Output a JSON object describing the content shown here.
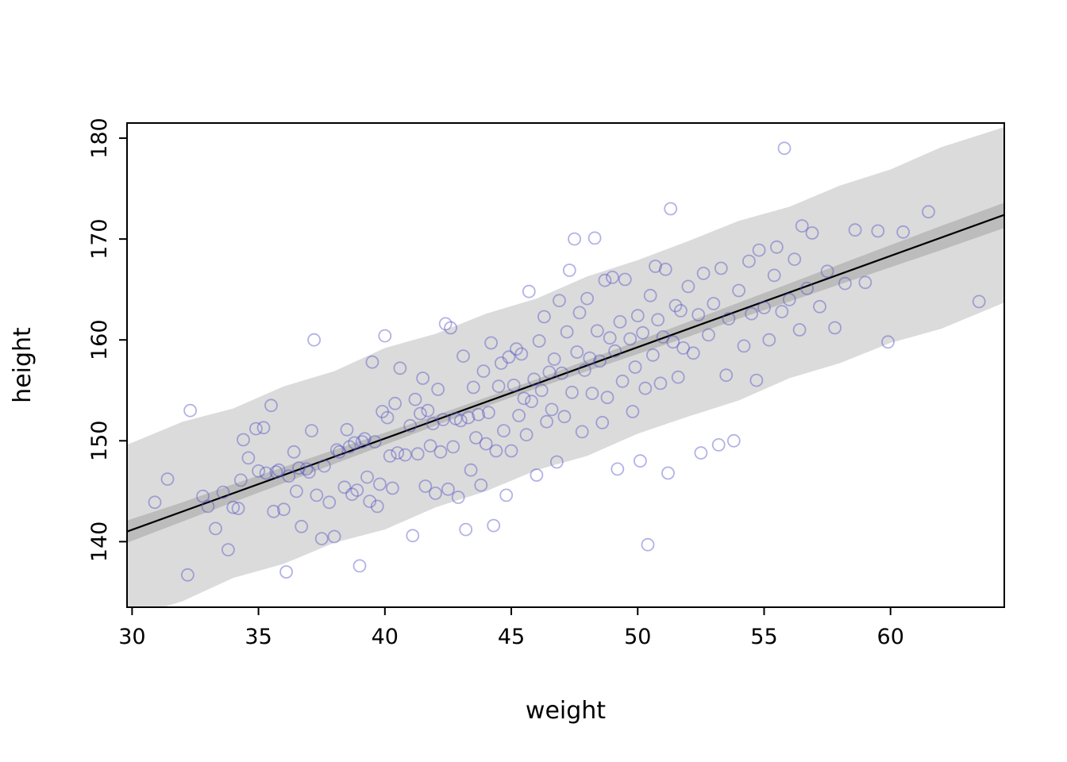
{
  "chart_data": {
    "type": "scatter",
    "title": "",
    "xlabel": "weight",
    "ylabel": "height",
    "xlim": [
      29.8,
      64.5
    ],
    "ylim": [
      133.5,
      181.5
    ],
    "xticks": [
      30,
      35,
      40,
      45,
      50,
      55,
      60
    ],
    "yticks": [
      140,
      150,
      160,
      170,
      180
    ],
    "grid": false,
    "legend": "none",
    "point_color": "#5555c8",
    "point_opacity": 0.45,
    "band_color": "rgba(0,0,0,0.14)",
    "line_color": "#000000",
    "regression_line": {
      "x": [
        29.8,
        64.5
      ],
      "y": [
        141.0,
        172.4
      ]
    },
    "mean_band": [
      [
        29.8,
        139.9,
        142.1
      ],
      [
        32,
        142.0,
        143.9
      ],
      [
        34,
        143.9,
        145.7
      ],
      [
        36,
        145.8,
        147.4
      ],
      [
        38,
        147.7,
        149.1
      ],
      [
        40,
        149.6,
        150.8
      ],
      [
        42,
        151.5,
        152.5
      ],
      [
        44,
        153.4,
        154.3
      ],
      [
        46,
        155.2,
        156.1
      ],
      [
        48,
        156.9,
        158.0
      ],
      [
        50,
        158.6,
        159.9
      ],
      [
        52,
        160.3,
        161.8
      ],
      [
        54,
        162.1,
        163.7
      ],
      [
        56,
        163.8,
        165.6
      ],
      [
        58,
        165.5,
        167.5
      ],
      [
        60,
        167.2,
        169.4
      ],
      [
        62,
        168.9,
        171.3
      ],
      [
        64.5,
        171.1,
        173.6
      ]
    ],
    "prediction_band": [
      [
        29.8,
        132.4,
        149.6
      ],
      [
        32,
        134.1,
        151.9
      ],
      [
        34,
        136.4,
        153.2
      ],
      [
        36,
        137.8,
        155.4
      ],
      [
        38,
        139.9,
        156.9
      ],
      [
        40,
        141.2,
        159.2
      ],
      [
        42,
        143.4,
        160.6
      ],
      [
        44,
        145.0,
        162.6
      ],
      [
        46,
        147.1,
        164.1
      ],
      [
        48,
        148.5,
        166.3
      ],
      [
        50,
        150.7,
        167.9
      ],
      [
        52,
        152.4,
        169.8
      ],
      [
        54,
        154.0,
        171.8
      ],
      [
        56,
        156.2,
        173.2
      ],
      [
        58,
        157.7,
        175.3
      ],
      [
        60,
        159.7,
        176.9
      ],
      [
        62,
        161.1,
        179.1
      ],
      [
        64.5,
        163.7,
        181.1
      ]
    ],
    "points": [
      [
        30.9,
        143.9
      ],
      [
        31.4,
        146.2
      ],
      [
        32.2,
        136.7
      ],
      [
        32.3,
        153.0
      ],
      [
        32.8,
        144.5
      ],
      [
        33.0,
        143.5
      ],
      [
        33.3,
        141.3
      ],
      [
        33.6,
        144.9
      ],
      [
        33.8,
        139.2
      ],
      [
        34.0,
        143.4
      ],
      [
        34.2,
        143.3
      ],
      [
        34.3,
        146.1
      ],
      [
        34.4,
        150.1
      ],
      [
        34.6,
        148.3
      ],
      [
        34.9,
        151.2
      ],
      [
        35.0,
        147.0
      ],
      [
        35.2,
        151.3
      ],
      [
        35.3,
        146.8
      ],
      [
        35.5,
        153.5
      ],
      [
        35.6,
        143.0
      ],
      [
        35.7,
        146.9
      ],
      [
        35.8,
        147.1
      ],
      [
        36.0,
        143.2
      ],
      [
        36.1,
        137.0
      ],
      [
        36.2,
        146.5
      ],
      [
        36.4,
        148.9
      ],
      [
        36.5,
        145.0
      ],
      [
        36.6,
        147.3
      ],
      [
        36.7,
        141.5
      ],
      [
        36.9,
        147.2
      ],
      [
        37.0,
        146.9
      ],
      [
        37.1,
        151.0
      ],
      [
        37.2,
        160.0
      ],
      [
        37.3,
        144.6
      ],
      [
        37.5,
        140.3
      ],
      [
        37.6,
        147.5
      ],
      [
        37.8,
        143.9
      ],
      [
        38.0,
        140.5
      ],
      [
        38.1,
        149.1
      ],
      [
        38.2,
        148.9
      ],
      [
        38.4,
        145.4
      ],
      [
        38.5,
        151.1
      ],
      [
        38.6,
        149.4
      ],
      [
        38.7,
        144.7
      ],
      [
        38.8,
        149.8
      ],
      [
        38.9,
        145.1
      ],
      [
        39.0,
        137.6
      ],
      [
        39.1,
        149.9
      ],
      [
        39.2,
        150.2
      ],
      [
        39.3,
        146.4
      ],
      [
        39.4,
        144.0
      ],
      [
        39.5,
        157.8
      ],
      [
        39.6,
        149.9
      ],
      [
        39.7,
        143.5
      ],
      [
        39.8,
        145.7
      ],
      [
        39.9,
        152.9
      ],
      [
        40.0,
        160.4
      ],
      [
        40.1,
        152.3
      ],
      [
        40.2,
        148.5
      ],
      [
        40.3,
        145.3
      ],
      [
        40.4,
        153.7
      ],
      [
        40.5,
        148.8
      ],
      [
        40.6,
        157.2
      ],
      [
        40.8,
        148.6
      ],
      [
        41.0,
        151.5
      ],
      [
        41.1,
        140.6
      ],
      [
        41.2,
        154.1
      ],
      [
        41.3,
        148.7
      ],
      [
        41.4,
        152.7
      ],
      [
        41.5,
        156.2
      ],
      [
        41.6,
        145.5
      ],
      [
        41.7,
        153.0
      ],
      [
        41.8,
        149.5
      ],
      [
        41.9,
        151.7
      ],
      [
        42.0,
        144.8
      ],
      [
        42.1,
        155.1
      ],
      [
        42.2,
        148.9
      ],
      [
        42.3,
        152.1
      ],
      [
        42.4,
        161.6
      ],
      [
        42.5,
        145.2
      ],
      [
        42.6,
        161.2
      ],
      [
        42.7,
        149.4
      ],
      [
        42.8,
        152.2
      ],
      [
        42.9,
        144.4
      ],
      [
        43.0,
        152.0
      ],
      [
        43.1,
        158.4
      ],
      [
        43.2,
        141.2
      ],
      [
        43.3,
        152.3
      ],
      [
        43.4,
        147.1
      ],
      [
        43.5,
        155.3
      ],
      [
        43.6,
        150.3
      ],
      [
        43.7,
        152.6
      ],
      [
        43.8,
        145.6
      ],
      [
        43.9,
        156.9
      ],
      [
        44.0,
        149.7
      ],
      [
        44.1,
        152.8
      ],
      [
        44.2,
        159.7
      ],
      [
        44.3,
        141.6
      ],
      [
        44.4,
        149.0
      ],
      [
        44.5,
        155.4
      ],
      [
        44.6,
        157.7
      ],
      [
        44.7,
        151.0
      ],
      [
        44.8,
        144.6
      ],
      [
        44.9,
        158.3
      ],
      [
        45.0,
        149.0
      ],
      [
        45.1,
        155.5
      ],
      [
        45.2,
        159.1
      ],
      [
        45.3,
        152.5
      ],
      [
        45.4,
        158.6
      ],
      [
        45.5,
        154.2
      ],
      [
        45.6,
        150.6
      ],
      [
        45.7,
        164.8
      ],
      [
        45.8,
        153.9
      ],
      [
        45.9,
        156.1
      ],
      [
        46.0,
        146.6
      ],
      [
        46.1,
        159.9
      ],
      [
        46.2,
        155.0
      ],
      [
        46.3,
        162.3
      ],
      [
        46.4,
        151.9
      ],
      [
        46.5,
        156.8
      ],
      [
        46.6,
        153.1
      ],
      [
        46.7,
        158.1
      ],
      [
        46.8,
        147.9
      ],
      [
        46.9,
        163.9
      ],
      [
        47.0,
        156.7
      ],
      [
        47.1,
        152.4
      ],
      [
        47.2,
        160.8
      ],
      [
        47.3,
        166.9
      ],
      [
        47.4,
        154.8
      ],
      [
        47.5,
        170.0
      ],
      [
        47.6,
        158.8
      ],
      [
        47.7,
        162.7
      ],
      [
        47.8,
        150.9
      ],
      [
        47.9,
        157.0
      ],
      [
        48.0,
        164.1
      ],
      [
        48.1,
        158.2
      ],
      [
        48.2,
        154.7
      ],
      [
        48.3,
        170.1
      ],
      [
        48.4,
        160.9
      ],
      [
        48.5,
        157.9
      ],
      [
        48.6,
        151.8
      ],
      [
        48.7,
        165.9
      ],
      [
        48.8,
        154.3
      ],
      [
        48.9,
        160.2
      ],
      [
        49.0,
        166.2
      ],
      [
        49.1,
        158.9
      ],
      [
        49.2,
        147.2
      ],
      [
        49.3,
        161.8
      ],
      [
        49.4,
        155.9
      ],
      [
        49.5,
        166.0
      ],
      [
        49.7,
        160.1
      ],
      [
        49.8,
        152.9
      ],
      [
        49.9,
        157.3
      ],
      [
        50.0,
        162.4
      ],
      [
        50.1,
        148.0
      ],
      [
        50.2,
        160.7
      ],
      [
        50.3,
        155.2
      ],
      [
        50.4,
        139.7
      ],
      [
        50.5,
        164.4
      ],
      [
        50.6,
        158.5
      ],
      [
        50.7,
        167.3
      ],
      [
        50.8,
        162.0
      ],
      [
        50.9,
        155.7
      ],
      [
        51.0,
        160.3
      ],
      [
        51.1,
        167.0
      ],
      [
        51.2,
        146.8
      ],
      [
        51.3,
        173.0
      ],
      [
        51.4,
        159.8
      ],
      [
        51.5,
        163.4
      ],
      [
        51.6,
        156.3
      ],
      [
        51.7,
        162.9
      ],
      [
        51.8,
        159.2
      ],
      [
        52.0,
        165.3
      ],
      [
        52.2,
        158.7
      ],
      [
        52.4,
        162.5
      ],
      [
        52.5,
        148.8
      ],
      [
        52.6,
        166.6
      ],
      [
        52.8,
        160.5
      ],
      [
        53.0,
        163.6
      ],
      [
        53.2,
        149.6
      ],
      [
        53.3,
        167.1
      ],
      [
        53.5,
        156.5
      ],
      [
        53.6,
        162.1
      ],
      [
        53.8,
        150.0
      ],
      [
        54.0,
        164.9
      ],
      [
        54.2,
        159.4
      ],
      [
        54.4,
        167.8
      ],
      [
        54.5,
        162.6
      ],
      [
        54.7,
        156.0
      ],
      [
        54.8,
        168.9
      ],
      [
        55.0,
        163.2
      ],
      [
        55.2,
        160.0
      ],
      [
        55.4,
        166.4
      ],
      [
        55.5,
        169.2
      ],
      [
        55.7,
        162.8
      ],
      [
        55.8,
        179.0
      ],
      [
        56.0,
        164.0
      ],
      [
        56.2,
        168.0
      ],
      [
        56.4,
        161.0
      ],
      [
        56.5,
        171.3
      ],
      [
        56.7,
        165.1
      ],
      [
        56.9,
        170.6
      ],
      [
        57.2,
        163.3
      ],
      [
        57.5,
        166.8
      ],
      [
        57.8,
        161.2
      ],
      [
        58.2,
        165.6
      ],
      [
        58.6,
        170.9
      ],
      [
        59.0,
        165.7
      ],
      [
        59.5,
        170.8
      ],
      [
        59.9,
        159.8
      ],
      [
        60.5,
        170.7
      ],
      [
        61.5,
        172.7
      ],
      [
        63.5,
        163.8
      ]
    ]
  }
}
